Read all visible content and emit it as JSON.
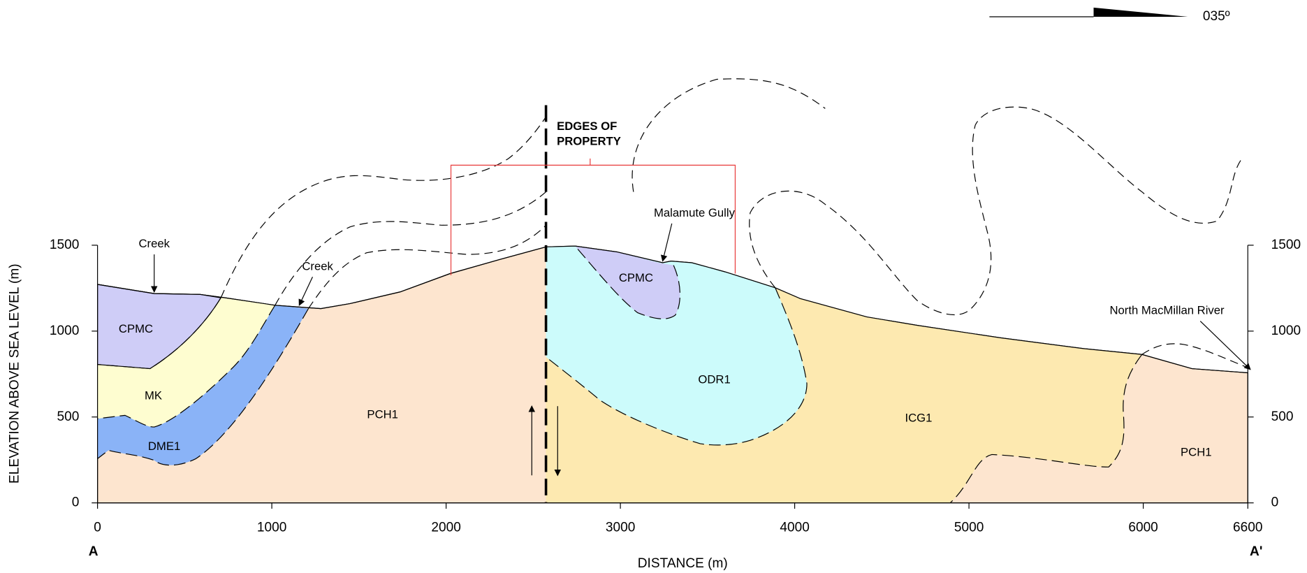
{
  "bearing": "035º",
  "axes": {
    "xlabel": "DISTANCE (m)",
    "ylabel": "ELEVATION ABOVE SEA LEVEL (m)",
    "xlim": [
      0,
      6600
    ],
    "ylim": [
      0,
      1500
    ],
    "xticks": [
      0,
      1000,
      2000,
      3000,
      4000,
      5000,
      6000,
      6600
    ],
    "yticks": [
      0,
      500,
      1000,
      1500
    ],
    "section_start": "A",
    "section_end": "A'"
  },
  "annotations": {
    "creek_left": "Creek",
    "creek_right": "Creek",
    "gully": "Malamute Gully",
    "river": "North MacMillan River",
    "property_line1": "EDGES OF",
    "property_line2": "PROPERTY"
  },
  "units": [
    "CPMC",
    "MK",
    "DME1",
    "PCH1",
    "CPMC",
    "ODR1",
    "ICG1",
    "PCH1"
  ]
}
